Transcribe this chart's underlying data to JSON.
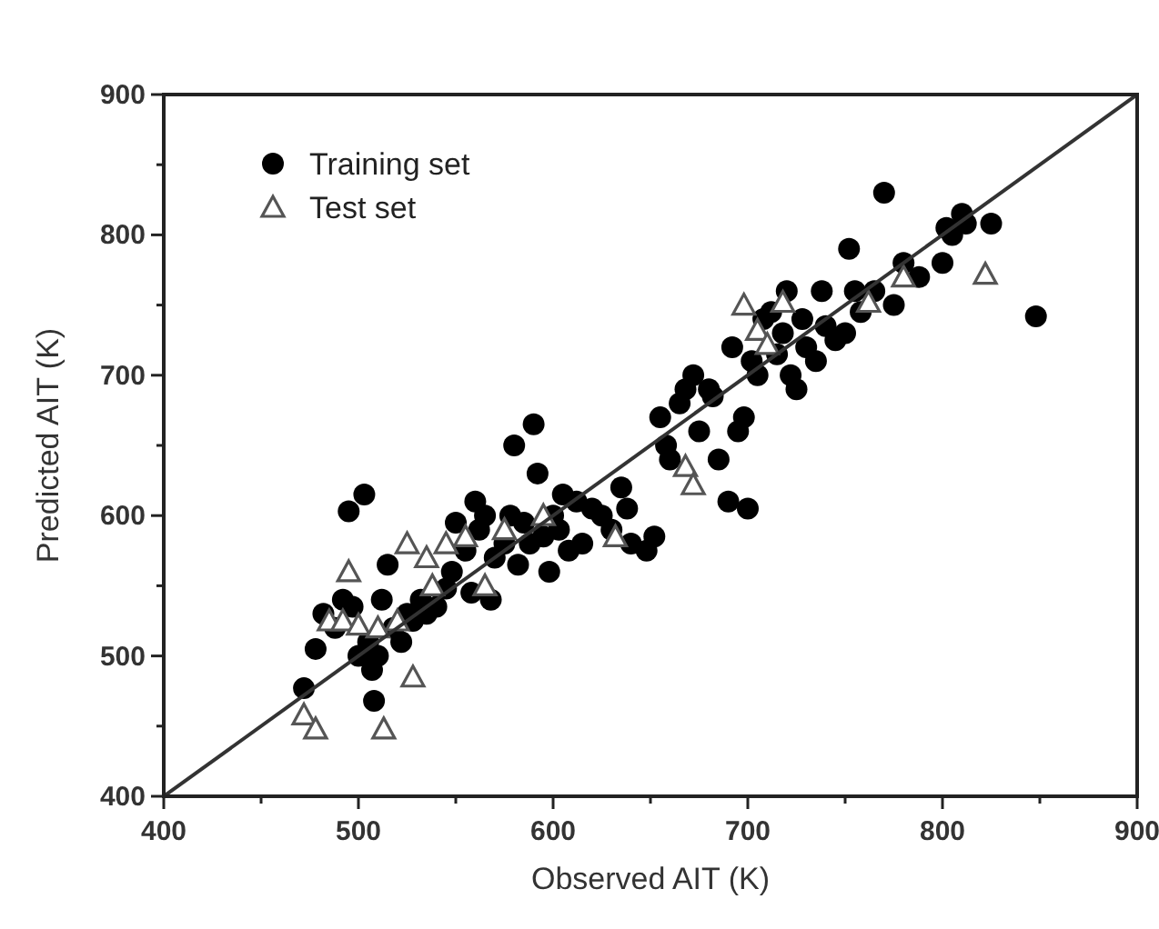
{
  "chart_data": {
    "type": "scatter",
    "xlabel": "Observed AIT (K)",
    "ylabel": "Predicted AIT (K)",
    "xlim": [
      400,
      900
    ],
    "ylim": [
      400,
      900
    ],
    "xticks": [
      400,
      {
        "value": 450,
        "label": null
      },
      500,
      {
        "value": 550,
        "label": null
      },
      600,
      {
        "value": 650,
        "label": null
      },
      700,
      {
        "value": 750,
        "label": null
      },
      800,
      {
        "value": 850,
        "label": null
      },
      900
    ],
    "yticks": [
      400,
      {
        "value": 450,
        "label": null
      },
      500,
      {
        "value": 550,
        "label": null
      },
      600,
      {
        "value": 650,
        "label": null
      },
      700,
      {
        "value": 750,
        "label": null
      },
      800,
      {
        "value": 850,
        "label": null
      },
      900
    ],
    "grid": false,
    "legend": "top left",
    "series": [
      {
        "name": "Training set",
        "color": "#000000",
        "marker": "circle",
        "x": [
          472,
          478,
          482,
          488,
          492,
          495,
          497,
          500,
          503,
          505,
          507,
          508,
          510,
          512,
          515,
          518,
          522,
          525,
          528,
          532,
          535,
          540,
          545,
          548,
          550,
          555,
          558,
          560,
          562,
          565,
          568,
          570,
          575,
          578,
          580,
          582,
          585,
          588,
          590,
          592,
          595,
          598,
          600,
          603,
          605,
          608,
          612,
          615,
          620,
          625,
          630,
          635,
          638,
          640,
          648,
          652,
          655,
          658,
          660,
          665,
          668,
          672,
          675,
          680,
          682,
          685,
          690,
          692,
          695,
          698,
          700,
          702,
          705,
          708,
          712,
          715,
          718,
          720,
          722,
          725,
          728,
          730,
          735,
          738,
          740,
          745,
          750,
          752,
          755,
          758,
          765,
          770,
          775,
          780,
          788,
          800,
          802,
          805,
          810,
          812,
          825,
          848
        ],
        "values": [
          477,
          505,
          530,
          520,
          540,
          603,
          535,
          500,
          615,
          510,
          490,
          468,
          500,
          540,
          565,
          520,
          510,
          530,
          525,
          540,
          530,
          535,
          548,
          560,
          595,
          575,
          545,
          610,
          590,
          600,
          540,
          570,
          580,
          600,
          650,
          565,
          595,
          580,
          665,
          630,
          585,
          560,
          600,
          590,
          615,
          575,
          610,
          580,
          605,
          600,
          590,
          620,
          605,
          580,
          575,
          585,
          670,
          650,
          640,
          680,
          690,
          700,
          660,
          690,
          685,
          640,
          610,
          720,
          660,
          670,
          605,
          710,
          700,
          740,
          745,
          715,
          730,
          760,
          700,
          690,
          740,
          720,
          710,
          760,
          735,
          725,
          730,
          790,
          760,
          745,
          760,
          830,
          750,
          780,
          770,
          780,
          805,
          800,
          815,
          808,
          808,
          742
        ]
      },
      {
        "name": "Test set",
        "color": "#555555",
        "marker": "triangle",
        "x": [
          472,
          478,
          485,
          492,
          495,
          500,
          510,
          513,
          520,
          525,
          528,
          535,
          538,
          545,
          555,
          565,
          575,
          595,
          632,
          668,
          672,
          698,
          705,
          710,
          718,
          762,
          780,
          822
        ],
        "values": [
          458,
          448,
          525,
          525,
          560,
          522,
          520,
          448,
          525,
          580,
          485,
          570,
          550,
          580,
          585,
          550,
          590,
          600,
          585,
          635,
          622,
          750,
          732,
          722,
          752,
          752,
          770,
          772
        ]
      },
      {
        "type": "line",
        "color": "#333333",
        "marker": "none",
        "x": [
          400,
          900
        ],
        "values": [
          400,
          900
        ]
      }
    ]
  }
}
